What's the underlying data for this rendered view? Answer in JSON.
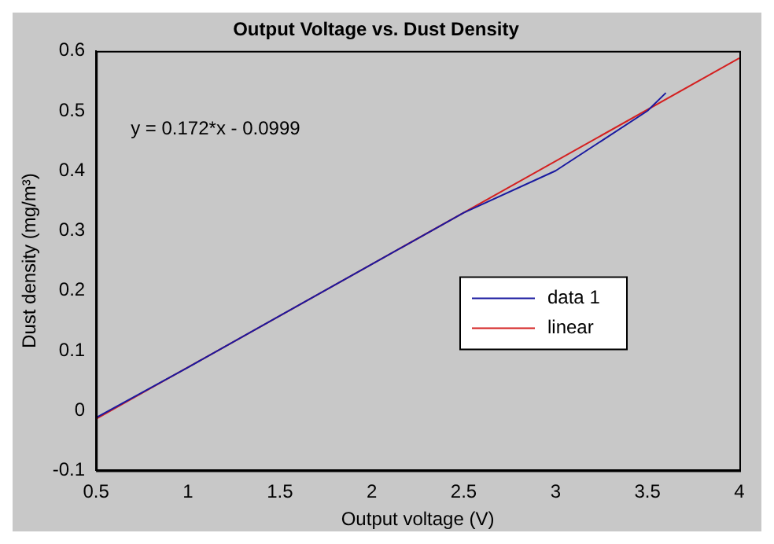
{
  "chart_data": {
    "type": "line",
    "title": "Output Voltage vs. Dust Density",
    "xlabel": "Output voltage (V)",
    "ylabel": "Dust density (mg/m³)",
    "annotations": [
      "y = 0.172*x - 0.0999"
    ],
    "series": [
      {
        "name": "data 1",
        "color": "#1a1aa0",
        "x": [
          0.5,
          1.0,
          1.5,
          2.0,
          2.5,
          3.0,
          3.5,
          3.6
        ],
        "values": [
          -0.012,
          0.072,
          0.158,
          0.244,
          0.33,
          0.4,
          0.5,
          0.53
        ]
      },
      {
        "name": "linear",
        "color": "#d42020",
        "x": [
          0.5,
          4.0
        ],
        "values": [
          -0.0139,
          0.5881
        ]
      }
    ],
    "xlim": [
      0.5,
      4
    ],
    "xticks": [
      0.5,
      1,
      1.5,
      2,
      2.5,
      3,
      3.5,
      4
    ],
    "ylim": [
      -0.1,
      0.6
    ],
    "yticks": [
      -0.1,
      0,
      0.1,
      0.2,
      0.3,
      0.4,
      0.5,
      0.6
    ],
    "grid": false,
    "legend": "right",
    "marker": "none",
    "line_style": "solid"
  }
}
